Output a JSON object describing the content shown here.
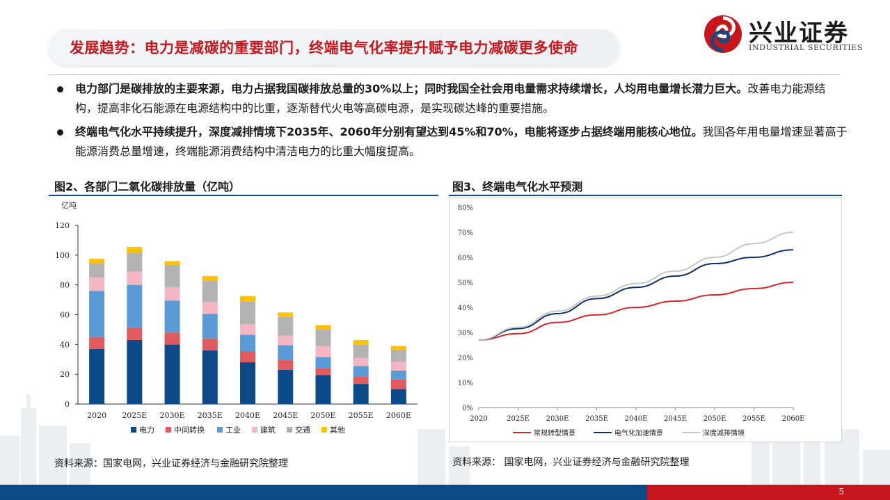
{
  "header": {
    "title": "发展趋势：电力是减碳的重要部门，终端电气化率提升赋予电力减碳更多使命",
    "logo_cn": "兴业证券",
    "logo_en": "INDUSTRIAL SECURITIES"
  },
  "bullets": [
    {
      "bold": "电力部门是碳排放的主要来源，电力占据我国碳排放总量的30%以上；同时我国全社会用电量需求持续增长，人均用电量增长潜力巨大。",
      "text": "改善电力能源结构，提高非化石能源在电源结构中的比重，逐渐替代火电等高碳电源，是实现碳达峰的重要措施。"
    },
    {
      "bold": "终端电气化水平持续提升，深度减排情境下2035年、2060年分别有望达到45%和70%，电能将逐步占据终端用能核心地位。",
      "text": "我国各年用电量增速显著高于能源消费总量增速，终端能源消费结构中清洁电力的比重大幅度提高。"
    }
  ],
  "figures": {
    "left_title": "图2、各部门二氧化碳排放量（亿吨）",
    "right_title": "图3、终端电气化水平预测",
    "left_source": "资料来源：国家电网，兴业证券经济与金融研究院整理",
    "right_source": "资料来源： 国家电网，兴业证券经济与金融研究院整理"
  },
  "footer": {
    "page": "5",
    "blue": "#0c4a8a",
    "red": "#c8161d"
  },
  "chart_data": [
    {
      "type": "bar",
      "stacked": true,
      "ylabel": "亿吨",
      "ylim": [
        0,
        120
      ],
      "yticks": [
        0,
        20,
        40,
        60,
        80,
        100,
        120
      ],
      "categories": [
        "2020",
        "2025E",
        "2030E",
        "2035E",
        "2040E",
        "2045E",
        "2050E",
        "2055E",
        "2060E"
      ],
      "legend_position": "bottom",
      "series": [
        {
          "name": "电力",
          "color": "#0c4a8a",
          "values": [
            37,
            43,
            40,
            36,
            28,
            23,
            19.5,
            13.5,
            10
          ]
        },
        {
          "name": "中间转换",
          "color": "#e05a5e",
          "values": [
            8,
            8,
            8,
            8,
            7.5,
            6.5,
            4.5,
            5,
            6.5
          ]
        },
        {
          "name": "工业",
          "color": "#5b9bd5",
          "values": [
            31,
            29,
            21.5,
            16.5,
            11,
            10,
            7.5,
            7,
            6
          ]
        },
        {
          "name": "建筑",
          "color": "#f4b6c2",
          "values": [
            9,
            9,
            9,
            8,
            7,
            6.5,
            7.5,
            5.5,
            6
          ]
        },
        {
          "name": "交通",
          "color": "#b3b3b3",
          "values": [
            9.5,
            12.5,
            15,
            14.5,
            15.5,
            12.5,
            11,
            9,
            8
          ]
        },
        {
          "name": "其他",
          "color": "#ffc000",
          "values": [
            3,
            4,
            2.5,
            3,
            3.5,
            3,
            3,
            3,
            2.5
          ]
        }
      ]
    },
    {
      "type": "line",
      "ylim": [
        0,
        80
      ],
      "yticks": [
        "0%",
        "10%",
        "20%",
        "30%",
        "40%",
        "50%",
        "60%",
        "70%",
        "80%"
      ],
      "categories": [
        "2020",
        "2025E",
        "2030E",
        "2035E",
        "2040E",
        "2045E",
        "2050E",
        "2055E",
        "2060E"
      ],
      "legend_position": "bottom",
      "series": [
        {
          "name": "常规转型情景",
          "color": "#d9262b",
          "values": [
            27,
            29.5,
            34,
            37,
            40,
            42.5,
            45,
            47.5,
            50
          ]
        },
        {
          "name": "电气化加速情景",
          "color": "#0c2f6b",
          "values": [
            27,
            31.5,
            37.5,
            43.5,
            48,
            52.5,
            57.5,
            60,
            63
          ]
        },
        {
          "name": "深度减排情境",
          "color": "#c6c6c6",
          "values": [
            27,
            32,
            38.5,
            44.5,
            49.5,
            54.5,
            60,
            65.5,
            70
          ]
        }
      ]
    }
  ]
}
